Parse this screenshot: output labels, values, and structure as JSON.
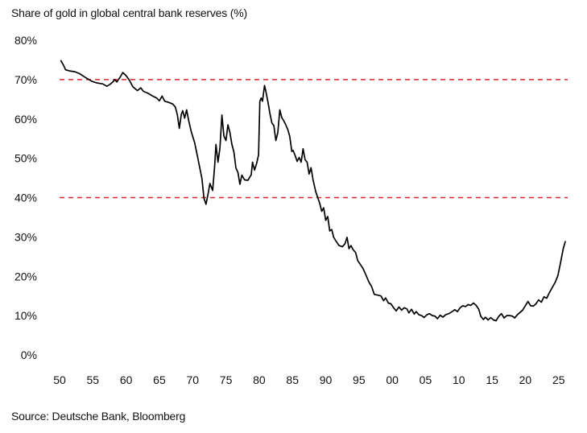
{
  "chart_data": {
    "type": "line",
    "title": "Share of gold in global central bank reserves (%)",
    "source": "Source: Deutsche Bank, Bloomberg",
    "xlabel": "",
    "ylabel": "",
    "xlim": [
      1950,
      2026
    ],
    "ylim": [
      0,
      80
    ],
    "grid": false,
    "x_ticks": [
      {
        "value": 1950,
        "label": "50"
      },
      {
        "value": 1955,
        "label": "55"
      },
      {
        "value": 1960,
        "label": "60"
      },
      {
        "value": 1965,
        "label": "65"
      },
      {
        "value": 1970,
        "label": "70"
      },
      {
        "value": 1975,
        "label": "75"
      },
      {
        "value": 1980,
        "label": "80"
      },
      {
        "value": 1985,
        "label": "85"
      },
      {
        "value": 1990,
        "label": "90"
      },
      {
        "value": 1995,
        "label": "95"
      },
      {
        "value": 2000,
        "label": "00"
      },
      {
        "value": 2005,
        "label": "05"
      },
      {
        "value": 2010,
        "label": "10"
      },
      {
        "value": 2015,
        "label": "15"
      },
      {
        "value": 2020,
        "label": "20"
      },
      {
        "value": 2025,
        "label": "25"
      }
    ],
    "y_ticks": [
      {
        "value": 0,
        "label": "0%"
      },
      {
        "value": 10,
        "label": "10%"
      },
      {
        "value": 20,
        "label": "20%"
      },
      {
        "value": 30,
        "label": "30%"
      },
      {
        "value": 40,
        "label": "40%"
      },
      {
        "value": 50,
        "label": "50%"
      },
      {
        "value": 60,
        "label": "60%"
      },
      {
        "value": 70,
        "label": "70%"
      },
      {
        "value": 80,
        "label": "80%"
      }
    ],
    "reference_lines": [
      {
        "y": 70,
        "color": "#e2232a",
        "style": "dashed"
      },
      {
        "y": 40,
        "color": "#e2232a",
        "style": "dashed"
      }
    ],
    "series": [
      {
        "color": "#000000",
        "points": [
          [
            1950.2,
            74.8
          ],
          [
            1950.6,
            73.6
          ],
          [
            1950.9,
            72.5
          ],
          [
            1951.5,
            72.2
          ],
          [
            1952.3,
            72.0
          ],
          [
            1953.0,
            71.5
          ],
          [
            1954.0,
            70.4
          ],
          [
            1954.8,
            69.6
          ],
          [
            1955.5,
            69.2
          ],
          [
            1956.5,
            68.9
          ],
          [
            1957.1,
            68.3
          ],
          [
            1957.6,
            68.8
          ],
          [
            1958.0,
            69.4
          ],
          [
            1958.3,
            70.0
          ],
          [
            1958.6,
            69.4
          ],
          [
            1959.1,
            70.6
          ],
          [
            1959.5,
            71.8
          ],
          [
            1960.0,
            71.0
          ],
          [
            1960.5,
            69.8
          ],
          [
            1961.0,
            68.2
          ],
          [
            1961.7,
            67.2
          ],
          [
            1962.2,
            67.9
          ],
          [
            1962.6,
            67.0
          ],
          [
            1963.2,
            66.6
          ],
          [
            1964.0,
            65.8
          ],
          [
            1964.6,
            65.3
          ],
          [
            1965.0,
            64.6
          ],
          [
            1965.4,
            65.8
          ],
          [
            1965.8,
            64.5
          ],
          [
            1966.4,
            64.2
          ],
          [
            1967.0,
            63.8
          ],
          [
            1967.4,
            63.0
          ],
          [
            1967.7,
            61.0
          ],
          [
            1968.0,
            57.6
          ],
          [
            1968.3,
            61.2
          ],
          [
            1968.5,
            62.1
          ],
          [
            1968.8,
            60.2
          ],
          [
            1969.1,
            62.3
          ],
          [
            1969.4,
            59.6
          ],
          [
            1969.8,
            56.7
          ],
          [
            1970.3,
            54.0
          ],
          [
            1970.8,
            49.8
          ],
          [
            1971.4,
            44.8
          ],
          [
            1971.7,
            39.8
          ],
          [
            1972.0,
            38.3
          ],
          [
            1972.3,
            40.8
          ],
          [
            1972.6,
            43.6
          ],
          [
            1973.0,
            41.8
          ],
          [
            1973.3,
            47.8
          ],
          [
            1973.5,
            53.5
          ],
          [
            1973.8,
            49.0
          ],
          [
            1974.1,
            52.5
          ],
          [
            1974.4,
            61.0
          ],
          [
            1974.7,
            55.6
          ],
          [
            1975.0,
            54.5
          ],
          [
            1975.3,
            58.5
          ],
          [
            1975.6,
            56.6
          ],
          [
            1975.9,
            53.5
          ],
          [
            1976.2,
            51.6
          ],
          [
            1976.5,
            47.5
          ],
          [
            1976.8,
            46.4
          ],
          [
            1977.1,
            43.4
          ],
          [
            1977.4,
            45.7
          ],
          [
            1977.8,
            44.5
          ],
          [
            1978.3,
            44.4
          ],
          [
            1978.8,
            45.8
          ],
          [
            1979.0,
            49.0
          ],
          [
            1979.3,
            47.0
          ],
          [
            1979.6,
            48.6
          ],
          [
            1979.9,
            50.8
          ],
          [
            1980.1,
            64.5
          ],
          [
            1980.3,
            65.3
          ],
          [
            1980.5,
            64.5
          ],
          [
            1980.8,
            68.5
          ],
          [
            1981.0,
            67.0
          ],
          [
            1981.3,
            64.5
          ],
          [
            1981.6,
            61.5
          ],
          [
            1981.9,
            59.0
          ],
          [
            1982.2,
            58.3
          ],
          [
            1982.5,
            54.5
          ],
          [
            1982.8,
            56.5
          ],
          [
            1983.1,
            62.3
          ],
          [
            1983.4,
            60.3
          ],
          [
            1983.7,
            59.5
          ],
          [
            1984.0,
            58.5
          ],
          [
            1984.3,
            57.3
          ],
          [
            1984.6,
            55.5
          ],
          [
            1984.9,
            51.7
          ],
          [
            1985.1,
            52.0
          ],
          [
            1985.4,
            50.7
          ],
          [
            1985.7,
            49.2
          ],
          [
            1986.0,
            50.2
          ],
          [
            1986.3,
            49.0
          ],
          [
            1986.6,
            52.4
          ],
          [
            1986.9,
            49.6
          ],
          [
            1987.2,
            49.0
          ],
          [
            1987.5,
            46.0
          ],
          [
            1987.8,
            47.6
          ],
          [
            1988.1,
            44.5
          ],
          [
            1988.5,
            41.5
          ],
          [
            1988.8,
            40.0
          ],
          [
            1989.1,
            38.5
          ],
          [
            1989.4,
            36.5
          ],
          [
            1989.7,
            37.4
          ],
          [
            1990.0,
            34.2
          ],
          [
            1990.3,
            35.2
          ],
          [
            1990.6,
            31.5
          ],
          [
            1990.9,
            31.9
          ],
          [
            1991.2,
            29.9
          ],
          [
            1991.6,
            28.8
          ],
          [
            1992.0,
            27.8
          ],
          [
            1992.5,
            27.5
          ],
          [
            1992.9,
            28.3
          ],
          [
            1993.2,
            29.9
          ],
          [
            1993.5,
            27.0
          ],
          [
            1993.8,
            27.8
          ],
          [
            1994.1,
            26.8
          ],
          [
            1994.5,
            26.0
          ],
          [
            1994.8,
            24.0
          ],
          [
            1995.2,
            23.0
          ],
          [
            1995.6,
            22.0
          ],
          [
            1996.0,
            20.5
          ],
          [
            1996.5,
            18.5
          ],
          [
            1996.9,
            17.4
          ],
          [
            1997.3,
            15.4
          ],
          [
            1997.8,
            15.2
          ],
          [
            1998.3,
            15.0
          ],
          [
            1998.7,
            13.8
          ],
          [
            1999.0,
            14.5
          ],
          [
            1999.4,
            13.2
          ],
          [
            1999.8,
            13.0
          ],
          [
            2000.2,
            12.0
          ],
          [
            2000.6,
            11.2
          ],
          [
            2001.0,
            12.2
          ],
          [
            2001.4,
            11.4
          ],
          [
            2001.8,
            12.0
          ],
          [
            2002.2,
            11.7
          ],
          [
            2002.5,
            10.7
          ],
          [
            2002.9,
            11.6
          ],
          [
            2003.3,
            10.4
          ],
          [
            2003.6,
            11.0
          ],
          [
            2004.0,
            10.2
          ],
          [
            2004.4,
            10.0
          ],
          [
            2004.8,
            9.5
          ],
          [
            2005.2,
            10.2
          ],
          [
            2005.6,
            10.5
          ],
          [
            2006.0,
            10.0
          ],
          [
            2006.4,
            9.9
          ],
          [
            2006.8,
            9.2
          ],
          [
            2007.2,
            10.1
          ],
          [
            2007.6,
            9.6
          ],
          [
            2008.0,
            10.2
          ],
          [
            2008.5,
            10.5
          ],
          [
            2009.0,
            11.0
          ],
          [
            2009.4,
            11.5
          ],
          [
            2009.8,
            11.0
          ],
          [
            2010.2,
            12.0
          ],
          [
            2010.6,
            12.5
          ],
          [
            2011.0,
            12.3
          ],
          [
            2011.4,
            12.8
          ],
          [
            2011.8,
            12.6
          ],
          [
            2012.2,
            13.2
          ],
          [
            2012.6,
            12.6
          ],
          [
            2013.0,
            11.6
          ],
          [
            2013.3,
            9.8
          ],
          [
            2013.7,
            9.0
          ],
          [
            2014.0,
            9.6
          ],
          [
            2014.4,
            8.9
          ],
          [
            2014.8,
            9.5
          ],
          [
            2015.2,
            8.9
          ],
          [
            2015.6,
            8.7
          ],
          [
            2016.0,
            9.8
          ],
          [
            2016.4,
            10.5
          ],
          [
            2016.8,
            9.4
          ],
          [
            2017.2,
            10.0
          ],
          [
            2017.6,
            10.0
          ],
          [
            2018.0,
            9.9
          ],
          [
            2018.4,
            9.4
          ],
          [
            2018.8,
            10.2
          ],
          [
            2019.2,
            10.8
          ],
          [
            2019.6,
            11.4
          ],
          [
            2020.0,
            12.5
          ],
          [
            2020.4,
            13.6
          ],
          [
            2020.8,
            12.5
          ],
          [
            2021.2,
            12.4
          ],
          [
            2021.6,
            13.0
          ],
          [
            2022.0,
            14.0
          ],
          [
            2022.4,
            13.4
          ],
          [
            2022.8,
            14.8
          ],
          [
            2023.2,
            14.4
          ],
          [
            2023.6,
            15.8
          ],
          [
            2024.0,
            17.0
          ],
          [
            2024.5,
            18.5
          ],
          [
            2024.9,
            20.2
          ],
          [
            2025.3,
            23.5
          ],
          [
            2025.7,
            27.0
          ],
          [
            2026.0,
            28.8
          ]
        ]
      }
    ]
  }
}
